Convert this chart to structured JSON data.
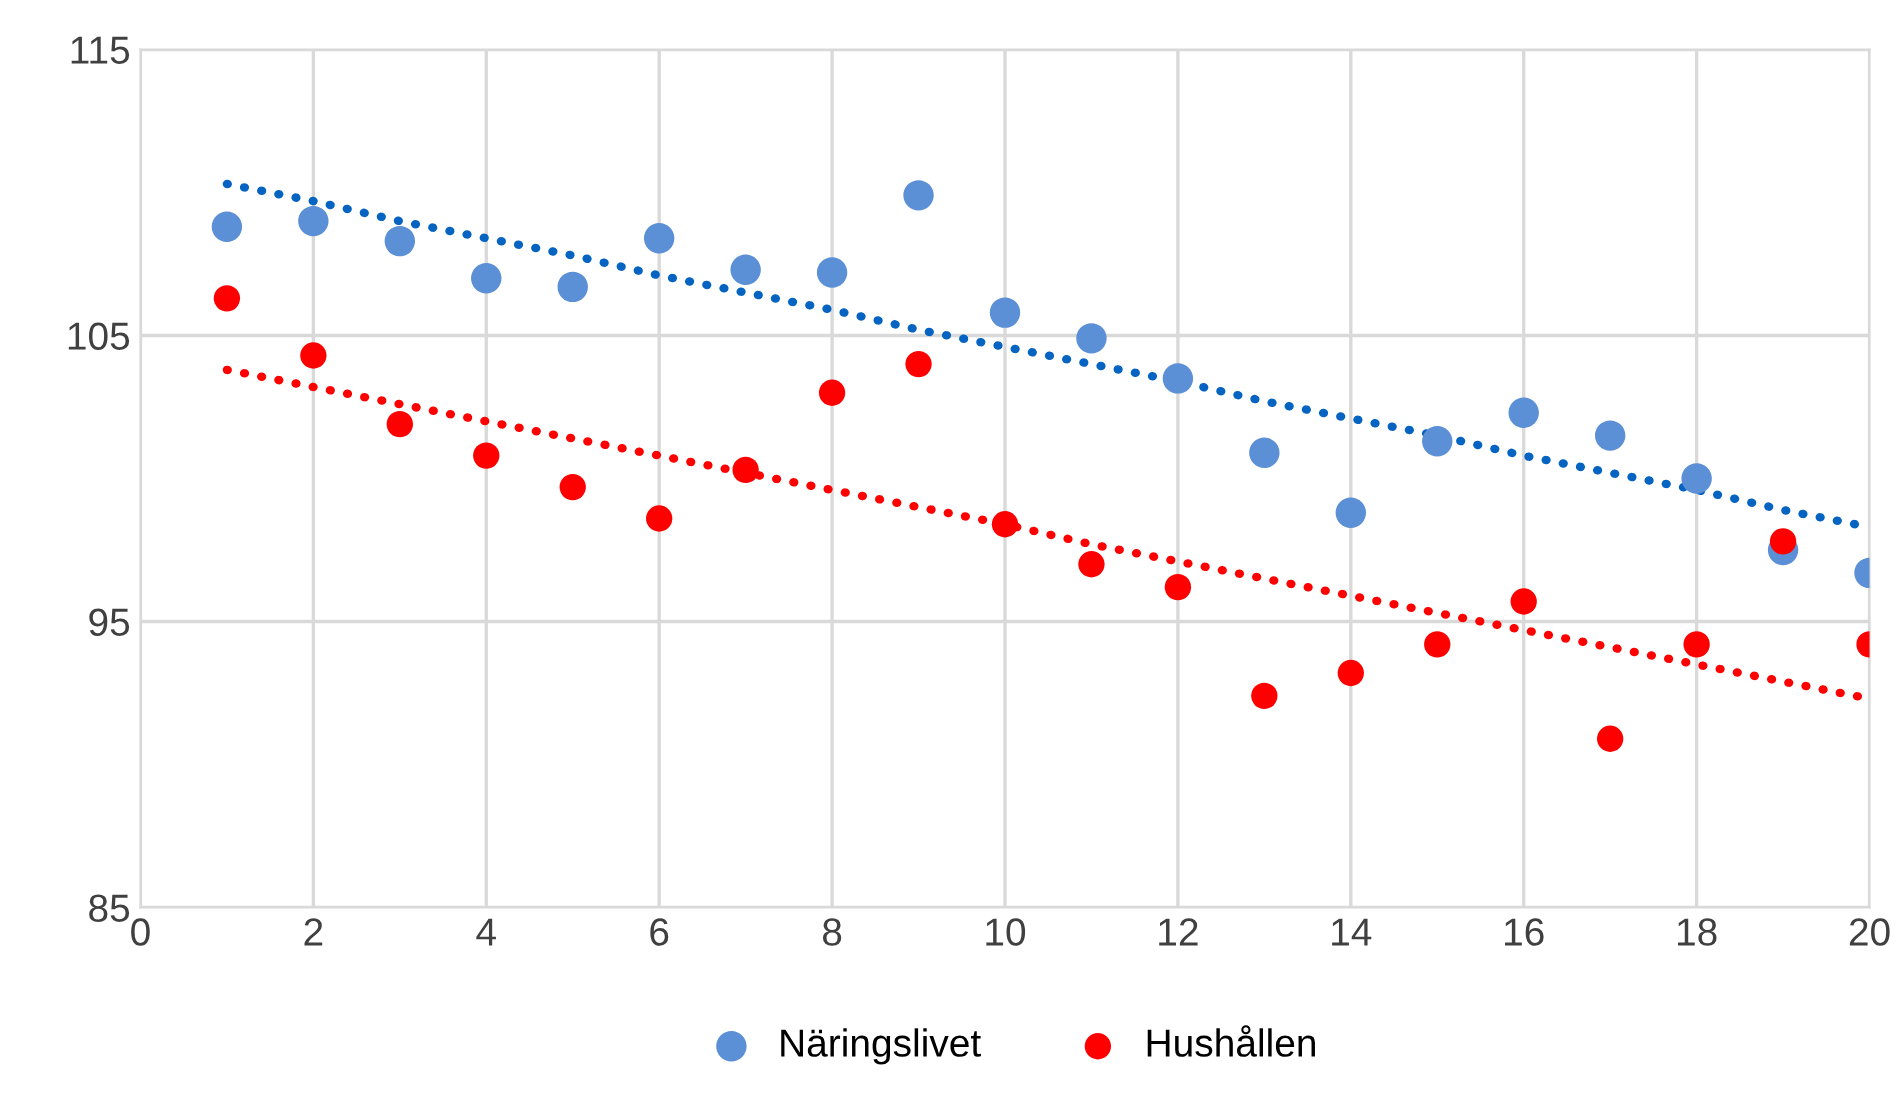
{
  "chart_data": {
    "type": "scatter",
    "x": [
      1,
      2,
      3,
      4,
      5,
      6,
      7,
      8,
      9,
      10,
      11,
      12,
      13,
      14,
      15,
      16,
      17,
      18,
      19,
      20
    ],
    "series": [
      {
        "name": "Näringslivet",
        "color": "#5b8fd6",
        "marker": "circle",
        "values": [
          108.8,
          109.0,
          108.3,
          107.0,
          106.7,
          108.4,
          107.3,
          107.2,
          109.9,
          105.8,
          104.9,
          103.5,
          100.9,
          98.8,
          101.3,
          102.3,
          101.5,
          100.0,
          97.5,
          96.7
        ]
      },
      {
        "name": "Hushållen",
        "color": "#ff0000",
        "marker": "circle",
        "values": [
          106.3,
          104.3,
          101.9,
          100.8,
          99.7,
          98.6,
          100.3,
          103.0,
          104.0,
          98.4,
          97.0,
          96.2,
          92.4,
          93.2,
          94.2,
          95.7,
          90.9,
          94.2,
          97.8,
          94.2
        ]
      },
      {
        "type": "line",
        "color": "#0563c1",
        "line_style": "dotted",
        "marker": "none",
        "values": [
          110.3,
          109.7,
          109.0,
          108.4,
          107.8,
          107.1,
          106.5,
          105.9,
          105.2,
          104.6,
          104.0,
          103.4,
          102.7,
          102.1,
          101.5,
          100.8,
          100.2,
          99.6,
          98.9,
          98.3
        ]
      },
      {
        "type": "line",
        "color": "#ff0000",
        "line_style": "dotted",
        "marker": "none",
        "values": [
          103.8,
          103.2,
          102.6,
          102.0,
          101.4,
          100.8,
          100.2,
          99.6,
          99.0,
          98.4,
          97.7,
          97.1,
          96.5,
          95.9,
          95.3,
          94.7,
          94.1,
          93.5,
          92.9,
          92.3
        ]
      }
    ],
    "xlim": [
      0,
      20
    ],
    "xticks": [
      0,
      2,
      4,
      6,
      8,
      10,
      12,
      14,
      16,
      18,
      20
    ],
    "ylim": [
      85,
      115
    ],
    "yticks": [
      85,
      95,
      105,
      115
    ],
    "grid": true,
    "legend": "bottom"
  }
}
